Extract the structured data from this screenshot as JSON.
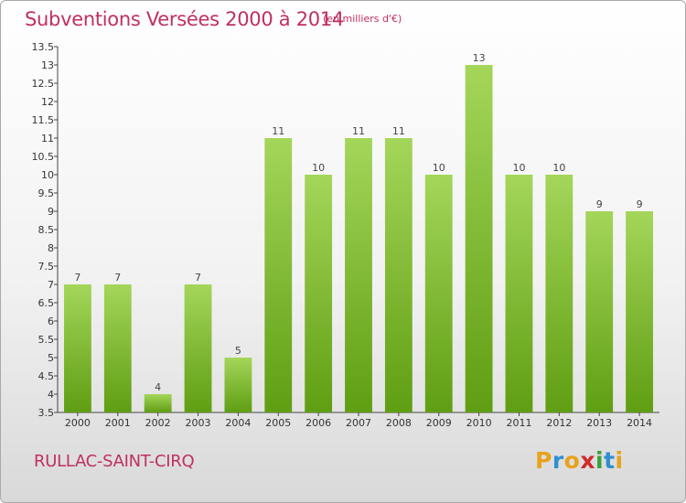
{
  "title": "Subventions Versées 2000 à 2014",
  "subtitle": "(en milliers d'€)",
  "commune": "RULLAC-SAINT-CIRQ",
  "logo": {
    "letters": [
      "P",
      "r",
      "o",
      "x",
      "i",
      "t",
      "i"
    ],
    "colors": [
      "#e8a21c",
      "#2f8fd0",
      "#e8a21c",
      "#d02a2a",
      "#3aa13a",
      "#2f8fd0",
      "#e8a21c"
    ]
  },
  "colors": {
    "accent": "#c0305e",
    "bar_top": "#a4d65a",
    "bar_bottom": "#5f9e12"
  },
  "chart_data": {
    "type": "bar",
    "title": "Subventions Versées 2000 à 2014",
    "subtitle": "(en milliers d'€)",
    "categories": [
      "2000",
      "2001",
      "2002",
      "2003",
      "2004",
      "2005",
      "2006",
      "2007",
      "2008",
      "2009",
      "2010",
      "2011",
      "2012",
      "2013",
      "2014"
    ],
    "values": [
      7,
      7,
      4,
      7,
      5,
      11,
      10,
      11,
      11,
      10,
      13,
      10,
      10,
      9,
      9
    ],
    "data_labels": [
      "7",
      "7",
      "4",
      "7",
      "5",
      "11",
      "10",
      "11",
      "11",
      "10",
      "13",
      "10",
      "10",
      "9",
      "9"
    ],
    "ylim": [
      3.5,
      13.5
    ],
    "yticks": [
      3.5,
      4,
      4.5,
      5,
      5.5,
      6,
      6.5,
      7,
      7.5,
      8,
      8.5,
      9,
      9.5,
      10,
      10.5,
      11,
      11.5,
      12,
      12.5,
      13,
      13.5
    ],
    "ytick_labels": [
      "3.5",
      "4",
      "4.5",
      "5",
      "5.5",
      "6",
      "6.5",
      "7",
      "7.5",
      "8",
      "8.5",
      "9",
      "9.5",
      "10",
      "10.5",
      "11",
      "11.5",
      "12",
      "12.5",
      "13",
      "13.5"
    ],
    "grid": false
  }
}
